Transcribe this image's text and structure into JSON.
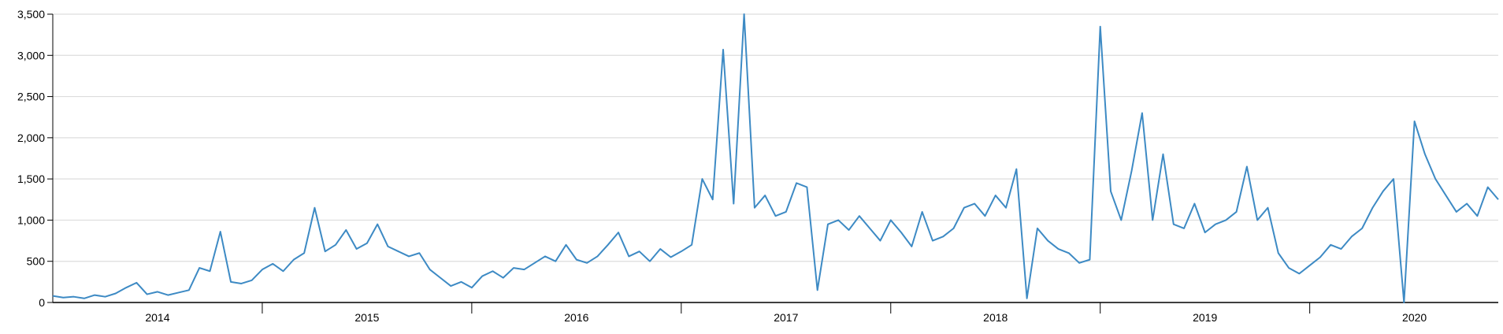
{
  "chart_data": {
    "type": "line",
    "x": [
      2014,
      2014.05,
      2014.1,
      2014.15,
      2014.2,
      2014.25,
      2014.3,
      2014.35,
      2014.4,
      2014.45,
      2014.5,
      2014.55,
      2014.6,
      2014.65,
      2014.7,
      2014.75,
      2014.8,
      2014.85,
      2014.9,
      2014.95,
      2015,
      2015.05,
      2015.1,
      2015.15,
      2015.2,
      2015.25,
      2015.3,
      2015.35,
      2015.4,
      2015.45,
      2015.5,
      2015.55,
      2015.6,
      2015.65,
      2015.7,
      2015.75,
      2015.8,
      2015.85,
      2015.9,
      2015.95,
      2016,
      2016.05,
      2016.1,
      2016.15,
      2016.2,
      2016.25,
      2016.3,
      2016.35,
      2016.4,
      2016.45,
      2016.5,
      2016.55,
      2016.6,
      2016.65,
      2016.7,
      2016.75,
      2016.8,
      2016.85,
      2016.9,
      2016.95,
      2017,
      2017.05,
      2017.1,
      2017.15,
      2017.2,
      2017.25,
      2017.3,
      2017.35,
      2017.4,
      2017.45,
      2017.5,
      2017.55,
      2017.6,
      2017.65,
      2017.7,
      2017.75,
      2017.8,
      2017.85,
      2017.9,
      2017.95,
      2018,
      2018.05,
      2018.1,
      2018.15,
      2018.2,
      2018.25,
      2018.3,
      2018.35,
      2018.4,
      2018.45,
      2018.5,
      2018.55,
      2018.6,
      2018.65,
      2018.7,
      2018.75,
      2018.8,
      2018.85,
      2018.9,
      2018.95,
      2019,
      2019.05,
      2019.1,
      2019.15,
      2019.2,
      2019.25,
      2019.3,
      2019.35,
      2019.4,
      2019.45,
      2019.5,
      2019.55,
      2019.6,
      2019.65,
      2019.7,
      2019.75,
      2019.8,
      2019.85,
      2019.9,
      2019.95,
      2020,
      2020.05,
      2020.1,
      2020.15,
      2020.2,
      2020.25,
      2020.3,
      2020.35,
      2020.4,
      2020.45,
      2020.5,
      2020.55,
      2020.6,
      2020.65,
      2020.7,
      2020.75,
      2020.8,
      2020.85,
      2020.9
    ],
    "values": [
      80,
      60,
      70,
      50,
      90,
      70,
      110,
      180,
      240,
      100,
      130,
      90,
      120,
      150,
      420,
      380,
      860,
      250,
      230,
      270,
      400,
      470,
      380,
      520,
      600,
      1150,
      620,
      700,
      880,
      650,
      720,
      950,
      680,
      620,
      560,
      600,
      400,
      300,
      200,
      250,
      180,
      320,
      380,
      300,
      420,
      400,
      480,
      560,
      500,
      700,
      520,
      480,
      560,
      700,
      850,
      560,
      620,
      500,
      650,
      550,
      620,
      700,
      1500,
      1250,
      3070,
      1200,
      3500,
      1150,
      1300,
      1050,
      1100,
      1450,
      1400,
      150,
      950,
      1000,
      880,
      1050,
      900,
      750,
      1000,
      850,
      680,
      1100,
      750,
      800,
      900,
      1150,
      1200,
      1050,
      1300,
      1150,
      1620,
      50,
      900,
      750,
      650,
      600,
      480,
      520,
      3350,
      1350,
      1000,
      1600,
      2300,
      1000,
      1800,
      950,
      900,
      1200,
      850,
      950,
      1000,
      1100,
      1650,
      1000,
      1150,
      600,
      420,
      350,
      450,
      550,
      700,
      650,
      800,
      900,
      1150,
      1350,
      1500,
      0,
      2200,
      1800,
      1500,
      1300,
      1100,
      1200,
      1050,
      1400,
      1250
    ],
    "color": "#3d8ac4",
    "xlim": [
      2014,
      2020.9
    ],
    "xticks": [
      {
        "value": 2014,
        "label": "2014"
      },
      {
        "value": 2015,
        "label": "2015"
      },
      {
        "value": 2016,
        "label": "2016"
      },
      {
        "value": 2017,
        "label": "2017"
      },
      {
        "value": 2018,
        "label": "2018"
      },
      {
        "value": 2019,
        "label": "2019"
      },
      {
        "value": 2020,
        "label": "2020"
      }
    ],
    "ylim": [
      0,
      3500
    ],
    "yticks": [
      0,
      500,
      {
        "value": 1000,
        "label": "1,000"
      },
      {
        "value": 1500,
        "label": "1,500"
      },
      {
        "value": 2000,
        "label": "2,000"
      },
      {
        "value": 2500,
        "label": "2,500"
      },
      {
        "value": 3000,
        "label": "3,000"
      },
      {
        "value": 3500,
        "label": "3,500"
      }
    ],
    "grid": true
  }
}
